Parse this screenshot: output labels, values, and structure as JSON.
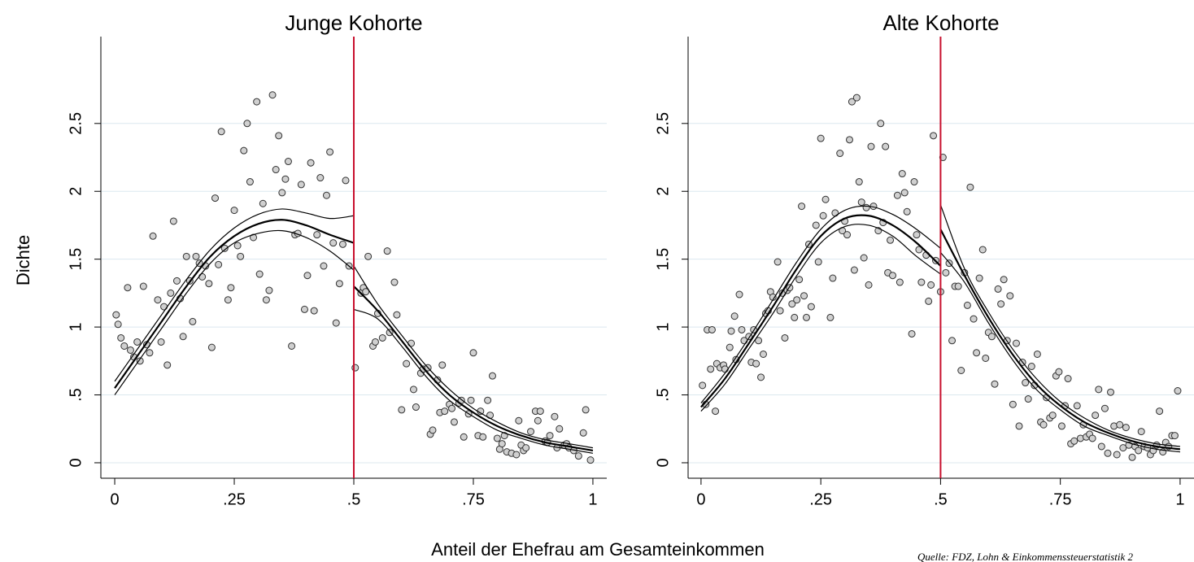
{
  "xlabel": "Anteil der Ehefrau am Gesamteinkommen",
  "ylabel": "Dichte",
  "note": "Quelle: FDZ, Lohn & Einkommenssteuerstatistik 2",
  "chart_data": [
    {
      "type": "scatter",
      "title": "Junge Kohorte",
      "marker_color": "#d0d0d0",
      "line_color": "#000000",
      "grid": true,
      "grid_color": "#dce8ef",
      "xline": {
        "value": 0.5,
        "color": "#c8102e"
      },
      "xlim": [
        -0.029,
        1.029
      ],
      "ylim": [
        -0.114,
        3.14
      ],
      "xticks": [
        0,
        {
          "value": 0.25,
          "label": ".25"
        },
        {
          "value": 0.5,
          "label": ".5"
        },
        {
          "value": 0.75,
          "label": ".75"
        },
        1
      ],
      "yticks": [
        0,
        {
          "value": 0.5,
          "label": ".5"
        },
        1,
        1.5,
        2,
        2.5
      ],
      "x": [
        0.003,
        0.007,
        0.013,
        0.02,
        0.027,
        0.033,
        0.04,
        0.047,
        0.053,
        0.06,
        0.067,
        0.073,
        0.08,
        0.09,
        0.097,
        0.103,
        0.11,
        0.117,
        0.123,
        0.13,
        0.137,
        0.143,
        0.15,
        0.157,
        0.163,
        0.17,
        0.177,
        0.183,
        0.19,
        0.197,
        0.203,
        0.21,
        0.217,
        0.223,
        0.23,
        0.237,
        0.243,
        0.25,
        0.257,
        0.263,
        0.27,
        0.277,
        0.283,
        0.29,
        0.297,
        0.303,
        0.31,
        0.317,
        0.323,
        0.33,
        0.337,
        0.343,
        0.35,
        0.357,
        0.363,
        0.37,
        0.377,
        0.383,
        0.39,
        0.397,
        0.403,
        0.41,
        0.417,
        0.423,
        0.43,
        0.437,
        0.443,
        0.45,
        0.457,
        0.463,
        0.47,
        0.477,
        0.483,
        0.49,
        0.503,
        0.515,
        0.52,
        0.525,
        0.53,
        0.54,
        0.545,
        0.55,
        0.56,
        0.57,
        0.575,
        0.585,
        0.59,
        0.6,
        0.61,
        0.62,
        0.625,
        0.63,
        0.64,
        0.645,
        0.655,
        0.66,
        0.665,
        0.675,
        0.68,
        0.685,
        0.69,
        0.7,
        0.705,
        0.71,
        0.72,
        0.725,
        0.73,
        0.74,
        0.745,
        0.75,
        0.76,
        0.765,
        0.77,
        0.78,
        0.785,
        0.79,
        0.8,
        0.805,
        0.81,
        0.815,
        0.82,
        0.83,
        0.84,
        0.845,
        0.85,
        0.855,
        0.86,
        0.87,
        0.88,
        0.885,
        0.89,
        0.9,
        0.905,
        0.91,
        0.92,
        0.925,
        0.93,
        0.94,
        0.945,
        0.95,
        0.96,
        0.97,
        0.98,
        0.985,
        0.995
      ],
      "values": [
        1.09,
        1.02,
        0.92,
        0.86,
        1.29,
        0.83,
        0.78,
        0.89,
        0.75,
        1.3,
        0.87,
        0.81,
        1.67,
        1.2,
        0.89,
        1.15,
        0.72,
        1.25,
        1.78,
        1.34,
        1.21,
        0.93,
        1.52,
        1.34,
        1.04,
        1.52,
        1.47,
        1.37,
        1.45,
        1.32,
        0.85,
        1.95,
        1.46,
        2.44,
        1.58,
        1.2,
        1.29,
        1.86,
        1.6,
        1.52,
        2.3,
        2.5,
        2.07,
        1.66,
        2.66,
        1.39,
        1.91,
        1.2,
        1.27,
        2.71,
        2.16,
        2.41,
        1.99,
        2.09,
        2.22,
        0.86,
        1.68,
        1.69,
        2.05,
        1.13,
        1.38,
        2.21,
        1.12,
        1.68,
        2.1,
        1.45,
        1.97,
        2.29,
        1.62,
        1.03,
        1.32,
        1.61,
        2.08,
        1.45,
        0.7,
        1.25,
        1.29,
        1.26,
        1.52,
        0.86,
        0.89,
        1.1,
        0.92,
        1.56,
        0.96,
        1.33,
        1.09,
        0.39,
        0.73,
        0.88,
        0.54,
        0.41,
        0.66,
        0.69,
        0.7,
        0.21,
        0.24,
        0.61,
        0.37,
        0.72,
        0.38,
        0.43,
        0.4,
        0.3,
        0.44,
        0.46,
        0.19,
        0.36,
        0.46,
        0.81,
        0.2,
        0.38,
        0.19,
        0.46,
        0.35,
        0.64,
        0.18,
        0.1,
        0.14,
        0.2,
        0.08,
        0.07,
        0.06,
        0.31,
        0.13,
        0.09,
        0.11,
        0.23,
        0.38,
        0.31,
        0.38,
        0.16,
        0.15,
        0.2,
        0.34,
        0.11,
        0.25,
        0.13,
        0.14,
        0.11,
        0.09,
        0.05,
        0.22,
        0.39,
        0.02
      ],
      "fits": [
        {
          "x": [
            0,
            0.05,
            0.1,
            0.15,
            0.2,
            0.25,
            0.3,
            0.35,
            0.4,
            0.45,
            0.5
          ],
          "values": [
            0.55,
            0.8,
            1.05,
            1.3,
            1.52,
            1.67,
            1.76,
            1.79,
            1.75,
            1.68,
            1.62
          ],
          "upper": [
            0.6,
            0.85,
            1.1,
            1.35,
            1.57,
            1.73,
            1.83,
            1.87,
            1.84,
            1.8,
            1.82
          ],
          "lower": [
            0.5,
            0.75,
            1.0,
            1.25,
            1.47,
            1.62,
            1.69,
            1.71,
            1.66,
            1.56,
            1.42
          ]
        },
        {
          "x": [
            0.5,
            0.55,
            0.6,
            0.65,
            0.7,
            0.75,
            0.8,
            0.85,
            0.9,
            0.95,
            1
          ],
          "values": [
            1.3,
            1.12,
            0.9,
            0.68,
            0.5,
            0.37,
            0.27,
            0.2,
            0.15,
            0.12,
            0.09
          ],
          "upper": [
            1.45,
            1.17,
            0.94,
            0.72,
            0.54,
            0.4,
            0.3,
            0.22,
            0.17,
            0.14,
            0.11
          ],
          "lower": [
            1.13,
            1.06,
            0.86,
            0.64,
            0.46,
            0.34,
            0.24,
            0.18,
            0.13,
            0.1,
            0.07
          ]
        }
      ]
    },
    {
      "type": "scatter",
      "title": "Alte Kohorte",
      "marker_color": "#d0d0d0",
      "line_color": "#000000",
      "grid": true,
      "grid_color": "#dce8ef",
      "xline": {
        "value": 0.5,
        "color": "#c8102e"
      },
      "xlim": [
        -0.027,
        1.029
      ],
      "ylim": [
        -0.114,
        3.14
      ],
      "xticks": [
        0,
        {
          "value": 0.25,
          "label": ".25"
        },
        {
          "value": 0.5,
          "label": ".5"
        },
        {
          "value": 0.75,
          "label": ".75"
        },
        1
      ],
      "yticks": [
        0,
        {
          "value": 0.5,
          "label": ".5"
        },
        1,
        1.5,
        2,
        2.5
      ],
      "x": [
        0.003,
        0.01,
        0.013,
        0.02,
        0.023,
        0.03,
        0.033,
        0.04,
        0.047,
        0.05,
        0.06,
        0.063,
        0.07,
        0.073,
        0.08,
        0.085,
        0.09,
        0.1,
        0.105,
        0.11,
        0.115,
        0.12,
        0.125,
        0.13,
        0.135,
        0.14,
        0.145,
        0.15,
        0.16,
        0.165,
        0.17,
        0.175,
        0.18,
        0.185,
        0.19,
        0.195,
        0.2,
        0.205,
        0.21,
        0.215,
        0.22,
        0.225,
        0.23,
        0.24,
        0.245,
        0.25,
        0.255,
        0.26,
        0.27,
        0.275,
        0.28,
        0.29,
        0.295,
        0.3,
        0.305,
        0.31,
        0.315,
        0.32,
        0.325,
        0.33,
        0.335,
        0.34,
        0.345,
        0.35,
        0.355,
        0.36,
        0.37,
        0.375,
        0.38,
        0.385,
        0.39,
        0.395,
        0.4,
        0.41,
        0.415,
        0.42,
        0.425,
        0.43,
        0.44,
        0.445,
        0.45,
        0.455,
        0.46,
        0.47,
        0.475,
        0.48,
        0.485,
        0.49,
        0.5,
        0.505,
        0.511,
        0.518,
        0.524,
        0.53,
        0.537,
        0.543,
        0.55,
        0.556,
        0.562,
        0.569,
        0.575,
        0.581,
        0.588,
        0.594,
        0.6,
        0.607,
        0.613,
        0.62,
        0.626,
        0.632,
        0.639,
        0.645,
        0.651,
        0.658,
        0.664,
        0.671,
        0.677,
        0.683,
        0.69,
        0.696,
        0.702,
        0.709,
        0.715,
        0.721,
        0.728,
        0.734,
        0.741,
        0.747,
        0.753,
        0.76,
        0.766,
        0.772,
        0.779,
        0.785,
        0.792,
        0.798,
        0.804,
        0.811,
        0.817,
        0.823,
        0.83,
        0.836,
        0.843,
        0.849,
        0.855,
        0.862,
        0.868,
        0.874,
        0.881,
        0.887,
        0.893,
        0.9,
        0.906,
        0.913,
        0.919,
        0.925,
        0.932,
        0.938,
        0.944,
        0.951,
        0.957,
        0.964,
        0.97,
        0.976,
        0.983,
        0.989,
        0.995
      ],
      "values": [
        0.57,
        0.43,
        0.98,
        0.69,
        0.98,
        0.38,
        0.73,
        0.7,
        0.72,
        0.69,
        0.85,
        0.97,
        1.08,
        0.76,
        1.24,
        0.98,
        0.9,
        0.93,
        0.74,
        0.98,
        0.73,
        0.9,
        0.63,
        0.8,
        1.1,
        1.12,
        1.26,
        1.22,
        1.48,
        1.12,
        1.25,
        0.92,
        1.27,
        1.29,
        1.17,
        1.07,
        1.2,
        1.35,
        1.89,
        1.23,
        1.07,
        1.61,
        1.15,
        1.75,
        1.48,
        2.39,
        1.82,
        1.94,
        1.07,
        1.36,
        1.84,
        2.28,
        1.71,
        1.78,
        1.68,
        2.38,
        2.66,
        1.42,
        2.69,
        2.07,
        1.92,
        1.51,
        1.88,
        1.31,
        2.33,
        1.89,
        1.71,
        2.5,
        1.77,
        2.33,
        1.4,
        1.64,
        1.38,
        1.97,
        1.33,
        2.13,
        1.99,
        1.85,
        0.95,
        2.07,
        1.68,
        1.57,
        1.33,
        1.53,
        1.19,
        1.31,
        2.41,
        1.49,
        1.26,
        2.25,
        1.4,
        1.47,
        0.9,
        1.3,
        1.3,
        0.68,
        1.4,
        1.16,
        2.03,
        1.06,
        0.81,
        1.36,
        1.57,
        0.77,
        0.96,
        0.93,
        0.58,
        1.28,
        1.17,
        1.35,
        0.9,
        1.23,
        0.43,
        0.88,
        0.27,
        0.74,
        0.59,
        0.47,
        0.71,
        0.57,
        0.8,
        0.3,
        0.28,
        0.48,
        0.33,
        0.35,
        0.64,
        0.67,
        0.27,
        0.42,
        0.62,
        0.14,
        0.16,
        0.42,
        0.18,
        0.28,
        0.19,
        0.21,
        0.18,
        0.35,
        0.54,
        0.12,
        0.4,
        0.07,
        0.52,
        0.27,
        0.06,
        0.28,
        0.11,
        0.26,
        0.13,
        0.04,
        0.12,
        0.09,
        0.23,
        0.12,
        0.11,
        0.06,
        0.09,
        0.13,
        0.38,
        0.08,
        0.15,
        0.12,
        0.2,
        0.2,
        0.53
      ],
      "fits": [
        {
          "x": [
            0,
            0.05,
            0.1,
            0.15,
            0.2,
            0.25,
            0.3,
            0.35,
            0.4,
            0.45,
            0.5
          ],
          "values": [
            0.41,
            0.62,
            0.88,
            1.15,
            1.43,
            1.67,
            1.8,
            1.82,
            1.75,
            1.62,
            1.45
          ],
          "upper": [
            0.44,
            0.66,
            0.92,
            1.2,
            1.48,
            1.72,
            1.86,
            1.89,
            1.83,
            1.72,
            1.58
          ],
          "lower": [
            0.38,
            0.58,
            0.84,
            1.1,
            1.38,
            1.62,
            1.74,
            1.75,
            1.67,
            1.52,
            1.39
          ]
        },
        {
          "x": [
            0.5,
            0.55,
            0.6,
            0.65,
            0.7,
            0.75,
            0.8,
            0.85,
            0.9,
            0.95,
            1
          ],
          "values": [
            1.72,
            1.38,
            1.07,
            0.8,
            0.58,
            0.42,
            0.3,
            0.22,
            0.16,
            0.12,
            0.1
          ],
          "upper": [
            1.9,
            1.43,
            1.11,
            0.84,
            0.62,
            0.45,
            0.33,
            0.24,
            0.18,
            0.14,
            0.12
          ],
          "lower": [
            1.55,
            1.33,
            1.03,
            0.76,
            0.54,
            0.39,
            0.27,
            0.2,
            0.14,
            0.1,
            0.08
          ]
        }
      ]
    }
  ]
}
